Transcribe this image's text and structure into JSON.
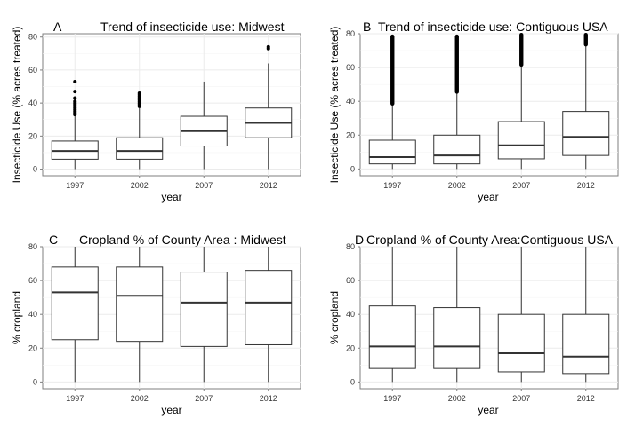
{
  "chart_data": [
    {
      "type": "box",
      "panel_letter": "A",
      "title": "Trend of insecticide use: Midwest",
      "xlabel": "year",
      "ylabel": "Insecticide Use (% acres treated)",
      "categories": [
        "1997",
        "2002",
        "2007",
        "2012"
      ],
      "ylim": [
        -4,
        82
      ],
      "yticks": [
        0,
        20,
        40,
        60,
        80
      ],
      "grid": true,
      "boxes": [
        {
          "min": 0,
          "q1": 6,
          "median": 11,
          "q3": 17,
          "max": 32,
          "outliers": [
            33,
            34,
            35,
            36,
            37,
            38,
            39,
            40,
            41,
            43,
            47,
            53
          ]
        },
        {
          "min": 0,
          "q1": 6,
          "median": 11,
          "q3": 19,
          "max": 37,
          "outliers": [
            38,
            39,
            40,
            41,
            42,
            43,
            44,
            45,
            46
          ]
        },
        {
          "min": 0,
          "q1": 14,
          "median": 23,
          "q3": 32,
          "max": 53,
          "outliers": []
        },
        {
          "min": 0,
          "q1": 19,
          "median": 28,
          "q3": 37,
          "max": 64,
          "outliers": [
            73,
            74
          ]
        }
      ]
    },
    {
      "type": "box",
      "panel_letter": "B",
      "title": "Trend of insecticide use: Contiguous USA",
      "xlabel": "year",
      "ylabel": "Insecticide Use (% acres treated)",
      "categories": [
        "1997",
        "2002",
        "2007",
        "2012"
      ],
      "ylim": [
        -4,
        80
      ],
      "yticks": [
        0,
        20,
        40,
        60,
        80
      ],
      "grid": true,
      "boxes": [
        {
          "min": 0,
          "q1": 3,
          "median": 7,
          "q3": 17,
          "max": 38,
          "outlier_range": [
            38,
            79
          ]
        },
        {
          "min": 0,
          "q1": 3,
          "median": 8,
          "q3": 20,
          "max": 45,
          "outlier_range": [
            45,
            79
          ]
        },
        {
          "min": 0,
          "q1": 6,
          "median": 14,
          "q3": 28,
          "max": 61,
          "outlier_range": [
            61,
            80
          ]
        },
        {
          "min": 0,
          "q1": 8,
          "median": 19,
          "q3": 34,
          "max": 73,
          "outlier_range": [
            73,
            80
          ]
        }
      ]
    },
    {
      "type": "box",
      "panel_letter": "C",
      "title": "Cropland % of County Area : Midwest",
      "xlabel": "year",
      "ylabel": "% cropland",
      "categories": [
        "1997",
        "2002",
        "2007",
        "2012"
      ],
      "ylim": [
        -4,
        80
      ],
      "yticks": [
        0,
        20,
        40,
        60,
        80
      ],
      "grid": true,
      "boxes": [
        {
          "min": 0,
          "q1": 25,
          "median": 53,
          "q3": 68,
          "max": 80,
          "outliers": []
        },
        {
          "min": 0,
          "q1": 24,
          "median": 51,
          "q3": 68,
          "max": 80,
          "outliers": []
        },
        {
          "min": 0,
          "q1": 21,
          "median": 47,
          "q3": 65,
          "max": 80,
          "outliers": []
        },
        {
          "min": 0,
          "q1": 22,
          "median": 47,
          "q3": 66,
          "max": 80,
          "outliers": []
        }
      ]
    },
    {
      "type": "box",
      "panel_letter": "D",
      "title": "Cropland % of County Area:Contiguous USA",
      "xlabel": "year",
      "ylabel": "% cropland",
      "categories": [
        "1997",
        "2002",
        "2007",
        "2012"
      ],
      "ylim": [
        -4,
        80
      ],
      "yticks": [
        0,
        20,
        40,
        60,
        80
      ],
      "grid": true,
      "boxes": [
        {
          "min": 0,
          "q1": 8,
          "median": 21,
          "q3": 45,
          "max": 80,
          "outliers": []
        },
        {
          "min": 0,
          "q1": 8,
          "median": 21,
          "q3": 44,
          "max": 80,
          "outliers": []
        },
        {
          "min": 0,
          "q1": 6,
          "median": 17,
          "q3": 40,
          "max": 80,
          "outliers": []
        },
        {
          "min": 0,
          "q1": 5,
          "median": 15,
          "q3": 40,
          "max": 80,
          "outliers": []
        }
      ]
    }
  ]
}
